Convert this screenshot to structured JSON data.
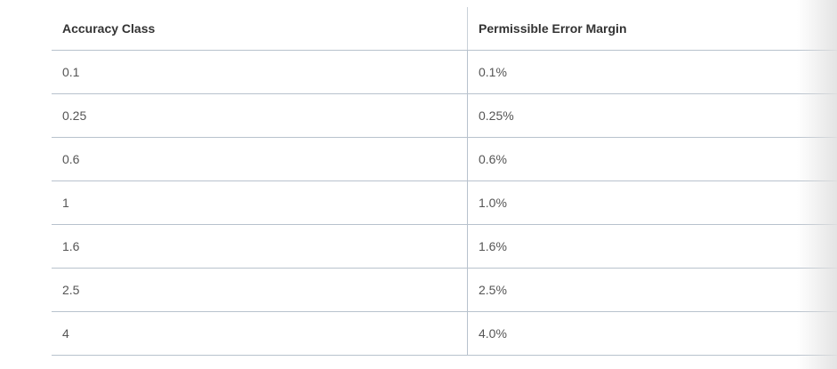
{
  "table": {
    "headers": [
      "Accuracy Class",
      "Permissible Error Margin"
    ],
    "rows": [
      [
        "0.1",
        "0.1%"
      ],
      [
        "0.25",
        "0.25%"
      ],
      [
        "0.6",
        "0.6%"
      ],
      [
        "1",
        "1.0%"
      ],
      [
        "1.6",
        "1.6%"
      ],
      [
        "2.5",
        "2.5%"
      ],
      [
        "4",
        "4.0%"
      ]
    ]
  }
}
